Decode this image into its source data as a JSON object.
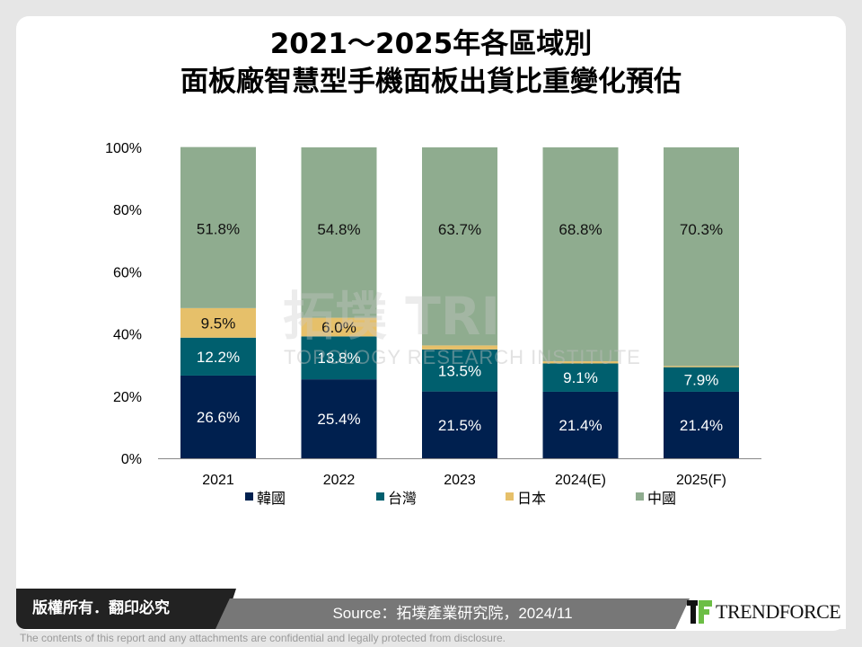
{
  "title_line1": "2021～2025年各區域別",
  "title_line2": "面板廠智慧型手機面板出貨比重變化預估",
  "chart_data": {
    "type": "bar",
    "stacked": true,
    "categories": [
      "2021",
      "2022",
      "2023",
      "2024(E)",
      "2025(F)"
    ],
    "series": [
      {
        "name": "韓國",
        "color": "#00204f",
        "values": [
          26.6,
          25.4,
          21.5,
          21.4,
          21.4
        ]
      },
      {
        "name": "台灣",
        "color": "#005f6e",
        "values": [
          12.2,
          13.8,
          13.5,
          9.1,
          7.9
        ]
      },
      {
        "name": "日本",
        "color": "#e6c06a",
        "values": [
          9.5,
          6.0,
          1.3,
          0.7,
          0.4
        ]
      },
      {
        "name": "中國",
        "color": "#8fac8f",
        "values": [
          51.8,
          54.8,
          63.7,
          68.8,
          70.3
        ]
      }
    ],
    "yticks": [
      "0%",
      "20%",
      "40%",
      "60%",
      "80%",
      "100%"
    ],
    "ylim": [
      0,
      100
    ],
    "legend": "bottom",
    "grid": false
  },
  "watermark": {
    "cn": "拓墣",
    "en": "TOPOLOGY RESEARCH INSTITUTE"
  },
  "footer": {
    "copyright": "版權所有．翻印必究",
    "source": "Source：拓墣產業研究院，2024/11",
    "logo": "TRENDFORCE",
    "disclaimer": "The contents of this report and any attachments are confidential and legally protected from disclosure."
  }
}
